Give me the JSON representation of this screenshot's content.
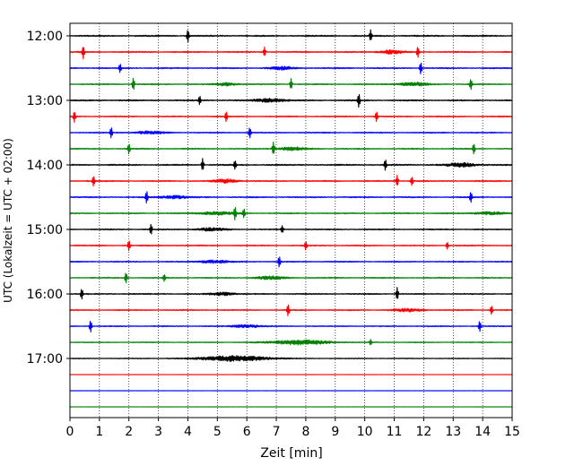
{
  "chart_data": {
    "type": "line",
    "title": "",
    "xlabel": "Zeit  [min]",
    "ylabel": "UTC (Lokalzeit = UTC + 02:00)",
    "xlim": [
      0,
      15
    ],
    "x_ticks": [
      0,
      1,
      2,
      3,
      4,
      5,
      6,
      7,
      8,
      9,
      10,
      11,
      12,
      13,
      14,
      15
    ],
    "vertical_grid": "dotted",
    "y_tick_labels": [
      "12:00",
      "13:00",
      "14:00",
      "15:00",
      "16:00",
      "17:00"
    ],
    "trace_interval_minutes": 15,
    "start_time": "12:00",
    "color_cycle": [
      "#000000",
      "#ff0000",
      "#0000ff",
      "#008000"
    ],
    "traces": [
      {
        "time": "12:00",
        "color": "#000000",
        "noise": 0.6,
        "spikes": [
          [
            4.0,
            7
          ],
          [
            10.2,
            6
          ]
        ],
        "bursts": []
      },
      {
        "time": "12:15",
        "color": "#ff0000",
        "noise": 0.55,
        "spikes": [
          [
            0.45,
            7
          ],
          [
            6.6,
            5
          ],
          [
            11.8,
            6
          ]
        ],
        "bursts": [
          [
            10.9,
            0.4,
            2
          ]
        ]
      },
      {
        "time": "12:30",
        "color": "#0000ff",
        "noise": 0.55,
        "spikes": [
          [
            1.7,
            5
          ],
          [
            11.9,
            7
          ]
        ],
        "bursts": [
          [
            7.2,
            0.4,
            1.6
          ]
        ]
      },
      {
        "time": "12:45",
        "color": "#008000",
        "noise": 0.5,
        "spikes": [
          [
            2.15,
            7
          ],
          [
            7.5,
            6
          ],
          [
            13.6,
            6
          ]
        ],
        "bursts": [
          [
            5.3,
            0.4,
            1.5
          ],
          [
            11.6,
            0.5,
            2
          ]
        ]
      },
      {
        "time": "13:00",
        "color": "#000000",
        "noise": 0.6,
        "spikes": [
          [
            4.4,
            5
          ],
          [
            9.8,
            8
          ]
        ],
        "bursts": [
          [
            6.8,
            0.5,
            2
          ]
        ]
      },
      {
        "time": "13:15",
        "color": "#ff0000",
        "noise": 0.5,
        "spikes": [
          [
            0.15,
            6
          ],
          [
            5.3,
            6
          ],
          [
            10.4,
            6
          ]
        ],
        "bursts": []
      },
      {
        "time": "13:30",
        "color": "#0000ff",
        "noise": 0.5,
        "spikes": [
          [
            1.4,
            6
          ],
          [
            6.1,
            6
          ]
        ],
        "bursts": [
          [
            2.7,
            0.5,
            1.5
          ]
        ]
      },
      {
        "time": "13:45",
        "color": "#008000",
        "noise": 0.5,
        "spikes": [
          [
            2.0,
            6
          ],
          [
            6.9,
            7
          ],
          [
            13.7,
            6
          ]
        ],
        "bursts": [
          [
            7.5,
            0.5,
            1.6
          ]
        ]
      },
      {
        "time": "14:00",
        "color": "#000000",
        "noise": 0.6,
        "spikes": [
          [
            4.5,
            7
          ],
          [
            5.6,
            5
          ],
          [
            10.7,
            6
          ]
        ],
        "bursts": [
          [
            13.3,
            0.5,
            2
          ]
        ]
      },
      {
        "time": "14:15",
        "color": "#ff0000",
        "noise": 0.55,
        "spikes": [
          [
            0.8,
            6
          ],
          [
            11.1,
            6
          ],
          [
            11.6,
            5
          ]
        ],
        "bursts": [
          [
            5.3,
            0.4,
            2
          ]
        ]
      },
      {
        "time": "14:30",
        "color": "#0000ff",
        "noise": 0.55,
        "spikes": [
          [
            2.6,
            7
          ],
          [
            13.6,
            6
          ]
        ],
        "bursts": [
          [
            3.5,
            0.5,
            1.6
          ]
        ]
      },
      {
        "time": "14:45",
        "color": "#008000",
        "noise": 0.5,
        "spikes": [
          [
            5.6,
            7
          ],
          [
            5.9,
            5
          ]
        ],
        "bursts": [
          [
            5.0,
            0.6,
            1.8
          ],
          [
            14.2,
            0.5,
            1.5
          ]
        ]
      },
      {
        "time": "15:00",
        "color": "#000000",
        "noise": 0.5,
        "spikes": [
          [
            2.75,
            6
          ],
          [
            7.2,
            4
          ]
        ],
        "bursts": [
          [
            4.8,
            0.5,
            1.5
          ]
        ]
      },
      {
        "time": "15:15",
        "color": "#ff0000",
        "noise": 0.5,
        "spikes": [
          [
            2.0,
            6
          ],
          [
            8.0,
            5
          ],
          [
            12.8,
            4
          ]
        ],
        "bursts": []
      },
      {
        "time": "15:30",
        "color": "#0000ff",
        "noise": 0.5,
        "spikes": [
          [
            7.1,
            6
          ]
        ],
        "bursts": [
          [
            4.9,
            0.5,
            1.6
          ]
        ]
      },
      {
        "time": "15:45",
        "color": "#008000",
        "noise": 0.5,
        "spikes": [
          [
            1.9,
            6
          ],
          [
            3.2,
            4
          ]
        ],
        "bursts": [
          [
            6.8,
            0.5,
            1.6
          ]
        ]
      },
      {
        "time": "16:00",
        "color": "#000000",
        "noise": 0.5,
        "spikes": [
          [
            0.4,
            6
          ],
          [
            11.1,
            7
          ]
        ],
        "bursts": [
          [
            5.2,
            0.4,
            1.6
          ]
        ]
      },
      {
        "time": "16:15",
        "color": "#ff0000",
        "noise": 0.5,
        "spikes": [
          [
            7.4,
            7
          ],
          [
            14.3,
            5
          ]
        ],
        "bursts": [
          [
            11.5,
            0.5,
            1.5
          ]
        ]
      },
      {
        "time": "16:30",
        "color": "#0000ff",
        "noise": 0.45,
        "spikes": [
          [
            0.7,
            7
          ],
          [
            13.9,
            6
          ]
        ],
        "bursts": [
          [
            6.0,
            0.5,
            1.6
          ]
        ]
      },
      {
        "time": "16:45",
        "color": "#008000",
        "noise": 0.4,
        "spikes": [
          [
            10.2,
            3
          ]
        ],
        "bursts": [
          [
            7.8,
            1.0,
            2.6
          ]
        ]
      },
      {
        "time": "17:00",
        "color": "#000000",
        "noise": 0.35,
        "spikes": [],
        "bursts": [
          [
            5.6,
            1.2,
            3
          ]
        ]
      },
      {
        "time": "17:15",
        "color": "#ff0000",
        "noise": 0.1,
        "spikes": [],
        "bursts": [],
        "active_from": 0
      },
      {
        "time": "17:30",
        "color": "#0000ff",
        "noise": 0.1,
        "spikes": [],
        "bursts": []
      },
      {
        "time": "17:45",
        "color": "#008000",
        "noise": 0.1,
        "spikes": [],
        "bursts": []
      }
    ]
  }
}
